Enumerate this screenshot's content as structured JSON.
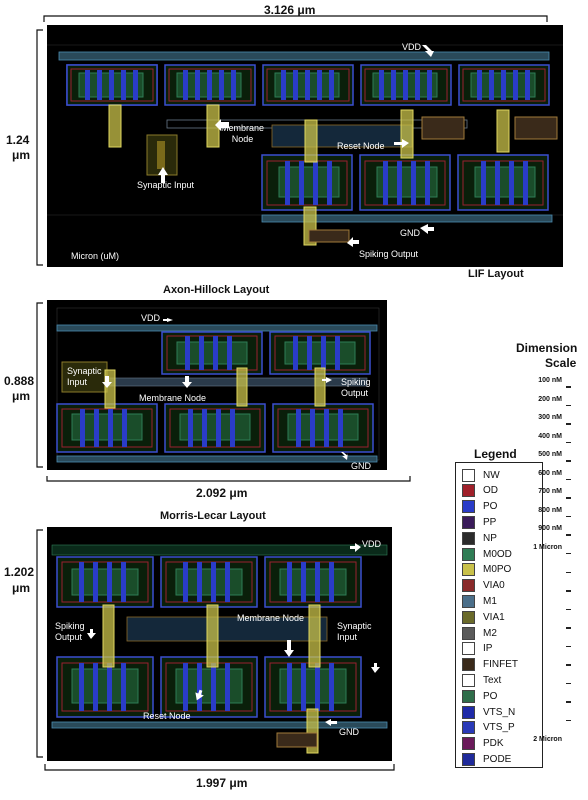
{
  "lif": {
    "width_label": "3.126 μm",
    "height_label_value": "1.24",
    "height_label_unit": "μm",
    "title": "LIF Layout",
    "unit_label": "Micron (uM)",
    "labels": {
      "vdd": "VDD",
      "membrane_node": "Membrane\nNode",
      "reset_node": "Reset Node",
      "synaptic_input": "Synaptic Input",
      "gnd": "GND",
      "spiking_output": "Spiking Output"
    }
  },
  "axon": {
    "title": "Axon-Hillock Layout",
    "width_label": "2.092 μm",
    "height_label_value": "0.888",
    "height_label_unit": "μm",
    "labels": {
      "vdd": "VDD",
      "synaptic_input": "Synaptic\nInput",
      "membrane_node": "Membrane Node",
      "spiking_output": "Spiking\nOutput",
      "gnd": "GND"
    }
  },
  "morris": {
    "title": "Morris-Lecar Layout",
    "width_label": "1.997 μm",
    "height_label_value": "1.202",
    "height_label_unit": "μm",
    "labels": {
      "vdd": "VDD",
      "spiking_output": "Spiking\nOutput",
      "membrane_node": "Membrane Node",
      "synaptic_input": "Synaptic\nInput",
      "reset_node": "Reset Node",
      "gnd": "GND"
    }
  },
  "legend": {
    "title": "Legend",
    "items": [
      {
        "label": "NW",
        "color": "#ffffff"
      },
      {
        "label": "OD",
        "color": "#a0202a"
      },
      {
        "label": "PO",
        "color": "#2a3cc8"
      },
      {
        "label": "PP",
        "color": "#3a1b5a"
      },
      {
        "label": "NP",
        "color": "#2b2b2b"
      },
      {
        "label": "M0OD",
        "color": "#2f7d55"
      },
      {
        "label": "M0PO",
        "color": "#c9c14a"
      },
      {
        "label": "VIA0",
        "color": "#8a2a2a"
      },
      {
        "label": "M1",
        "color": "#4b6f8a"
      },
      {
        "label": "VIA1",
        "color": "#6a6a2a"
      },
      {
        "label": "M2",
        "color": "#5a5a5a"
      },
      {
        "label": "IP",
        "color": "#ffffff"
      },
      {
        "label": "FINFET",
        "color": "#3a2a1a"
      },
      {
        "label": "Text",
        "color": "#ffffff"
      },
      {
        "label": "PO",
        "color": "#2f6d4a"
      },
      {
        "label": "VTS_N",
        "color": "#1f2aa8"
      },
      {
        "label": "VTS_P",
        "color": "#2a3ab8"
      },
      {
        "label": "PDK",
        "color": "#6a1a5a"
      },
      {
        "label": "PODE",
        "color": "#1f2a9a"
      }
    ]
  },
  "scale": {
    "title_line1": "Dimension",
    "title_line2": "Scale",
    "ticks": [
      "100 nM",
      "200 nM",
      "300 nM",
      "400 nM",
      "500 nM",
      "600 nM",
      "700 nM",
      "800 nM",
      "900 nM",
      "1 Micron"
    ],
    "end_label": "2 Micron"
  }
}
